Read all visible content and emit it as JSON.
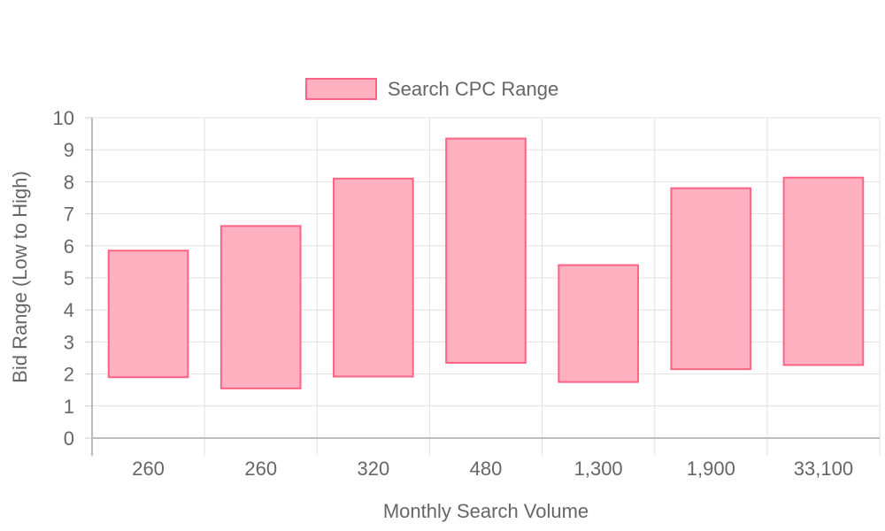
{
  "chart_data": {
    "type": "bar",
    "bar_style": "floating-range",
    "categories": [
      "260",
      "260",
      "320",
      "480",
      "1,300",
      "1,900",
      "33,100"
    ],
    "series": [
      {
        "name": "Search CPC Range",
        "ranges": [
          [
            1.9,
            5.85
          ],
          [
            1.55,
            6.62
          ],
          [
            1.92,
            8.1
          ],
          [
            2.35,
            9.35
          ],
          [
            1.75,
            5.4
          ],
          [
            2.15,
            7.8
          ],
          [
            2.28,
            8.13
          ]
        ],
        "fill_color": "#ffb1c1",
        "border_color": "#ff6384"
      }
    ],
    "xlabel": "Monthly Search Volume",
    "ylabel": "Bid Range (Low to High)",
    "ylim": [
      0,
      10
    ],
    "yticks": [
      0,
      1,
      2,
      3,
      4,
      5,
      6,
      7,
      8,
      9,
      10
    ],
    "grid": true,
    "legend_position": "top-center"
  }
}
